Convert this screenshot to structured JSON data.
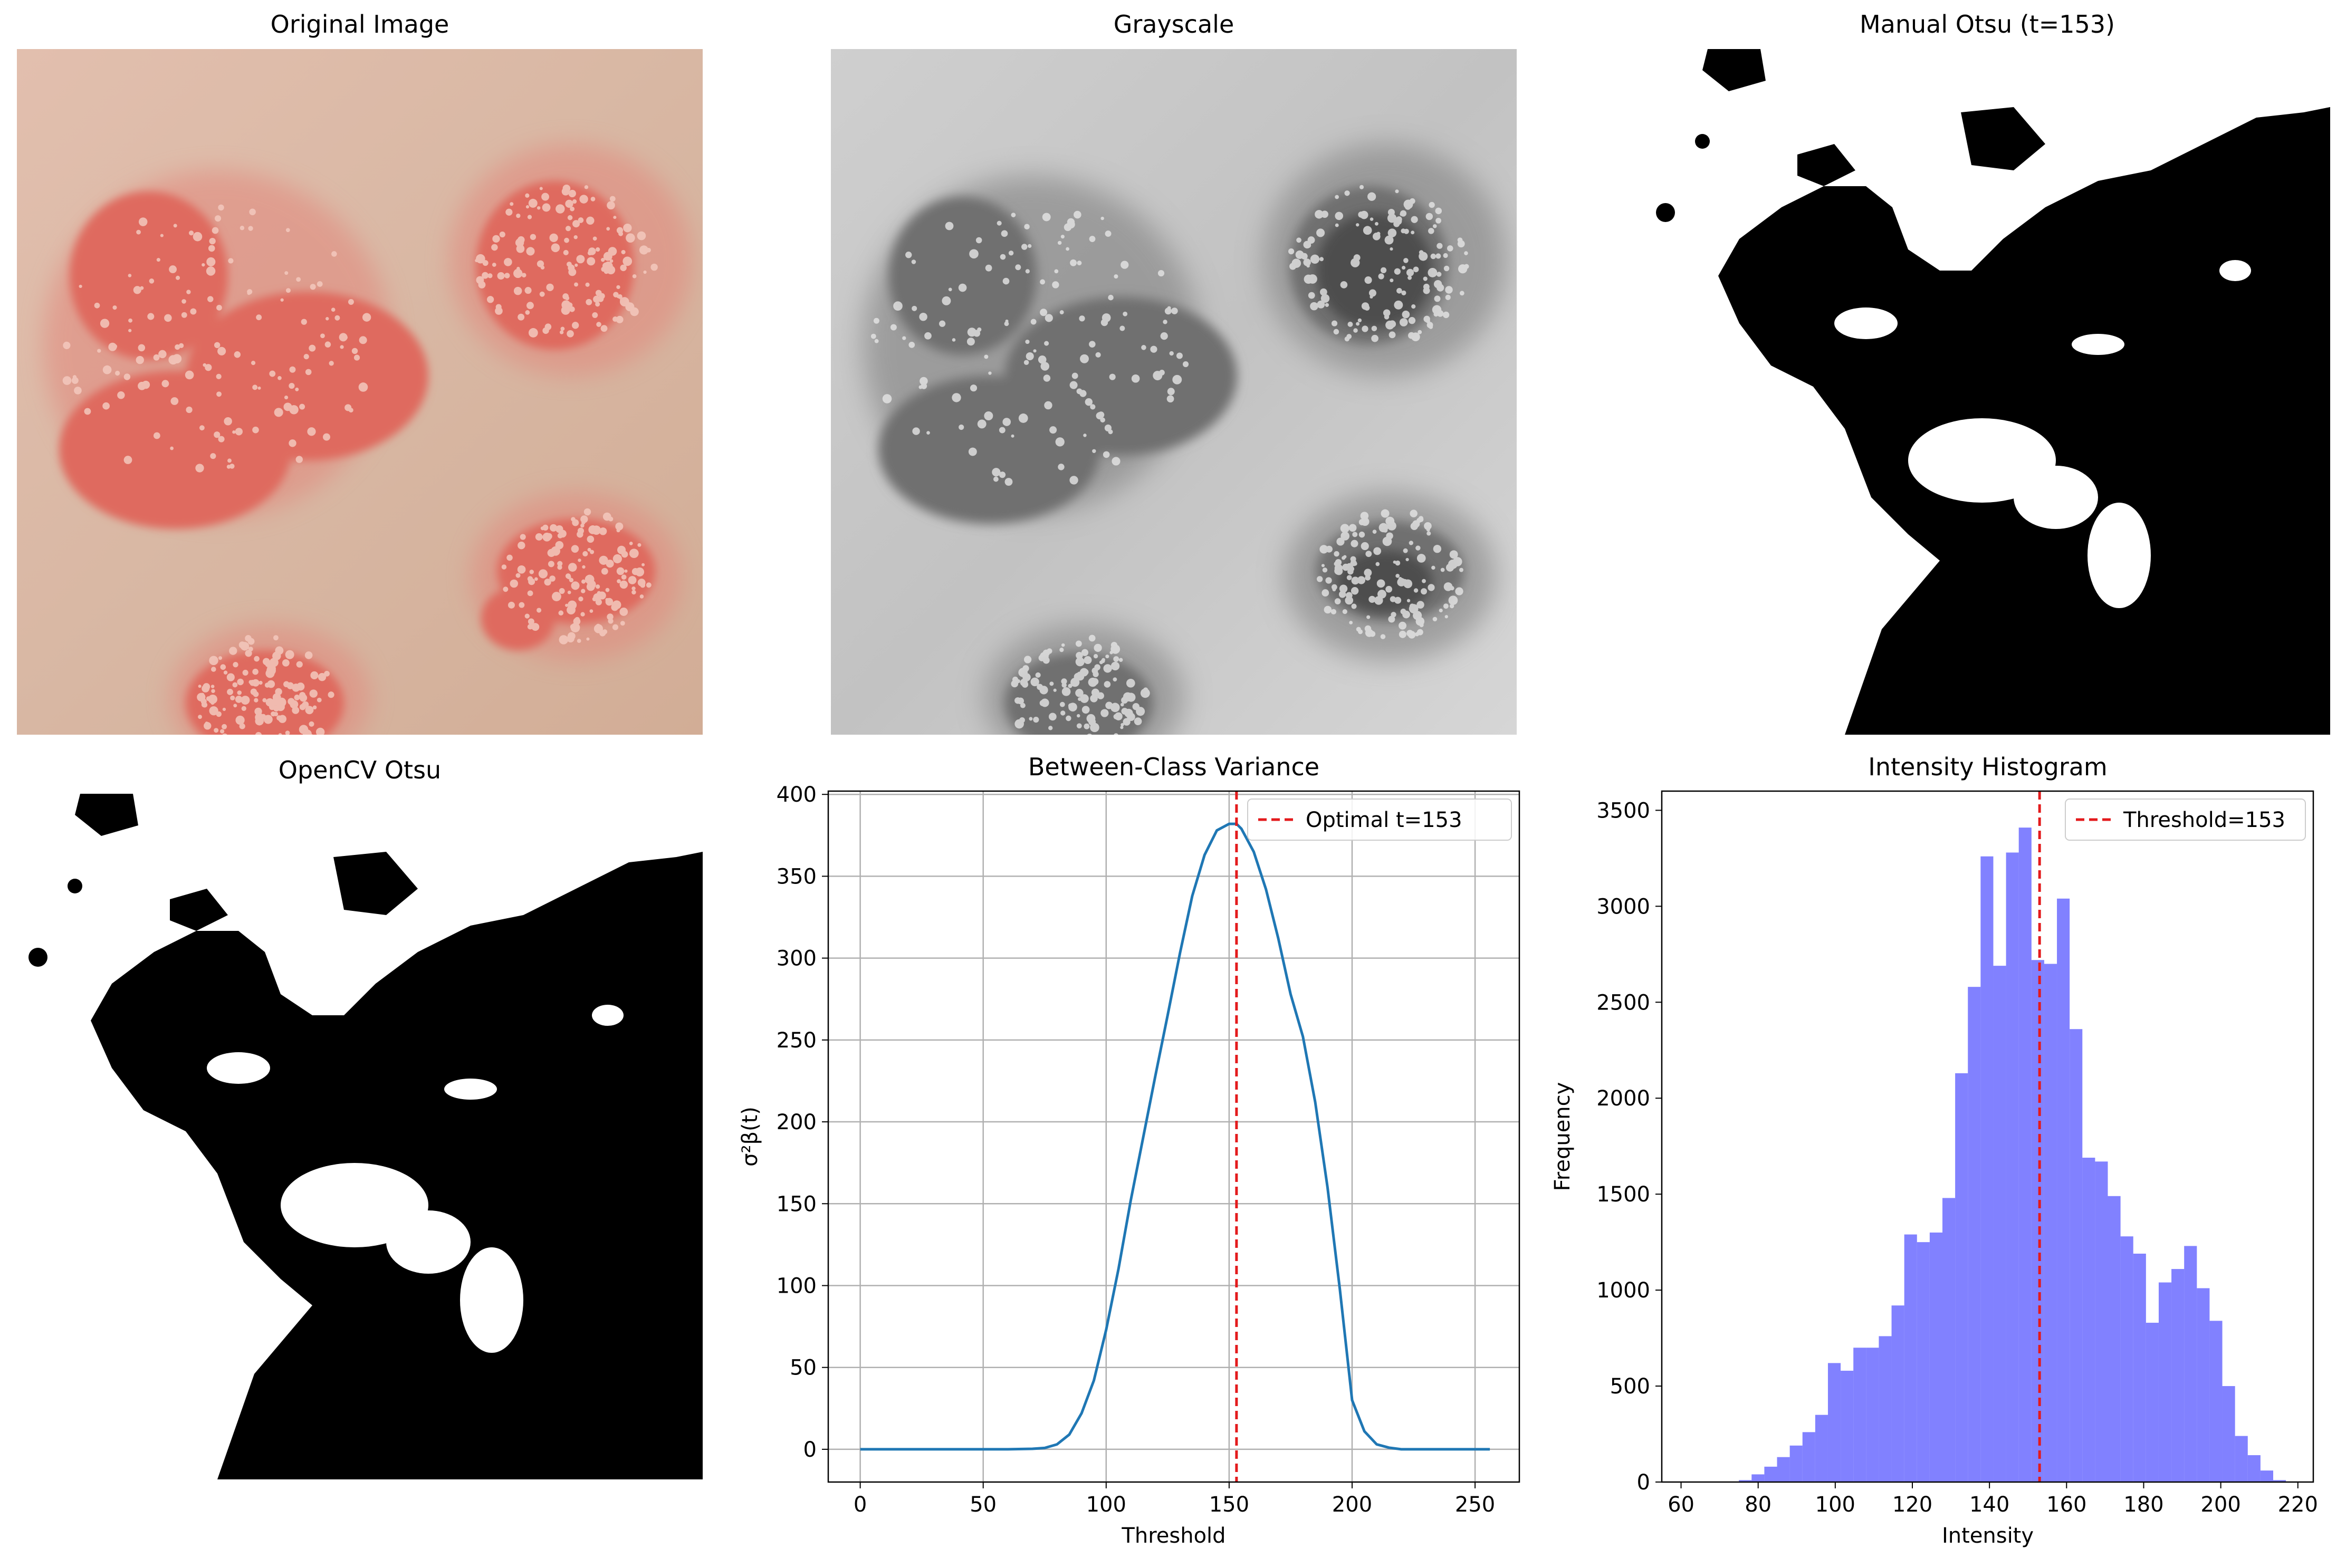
{
  "panels": {
    "original_title": "Original Image",
    "grayscale_title": "Grayscale",
    "manual_title": "Manual Otsu (t=153)",
    "opencv_title": "OpenCV Otsu"
  },
  "colors": {
    "skin": "#d9b7a2",
    "lesion": "#e0675c",
    "variance_line": "#1f77b4",
    "threshold_line": "#e31a1c",
    "hist_bars": "#4b4bff"
  },
  "chart_data": [
    {
      "type": "line",
      "title": "Between-Class Variance",
      "xlabel": "Threshold",
      "ylabel": "σ²β(t)",
      "xlim": [
        -13,
        268
      ],
      "ylim": [
        -20,
        402
      ],
      "xticks": [
        0,
        50,
        100,
        150,
        200,
        250
      ],
      "yticks": [
        0,
        50,
        100,
        150,
        200,
        250,
        300,
        350,
        400
      ],
      "grid": true,
      "legend_position": "top-right",
      "x": [
        0,
        60,
        70,
        75,
        80,
        85,
        90,
        95,
        100,
        105,
        110,
        115,
        120,
        125,
        130,
        135,
        140,
        145,
        150,
        153,
        155,
        160,
        165,
        170,
        175,
        180,
        185,
        190,
        195,
        200,
        205,
        210,
        215,
        220,
        230,
        256
      ],
      "series": [
        {
          "name": "",
          "values": [
            0,
            0,
            0.3,
            0.8,
            3,
            9,
            22,
            42,
            73,
            110,
            152,
            190,
            228,
            265,
            303,
            338,
            363,
            378,
            382,
            382,
            379,
            365,
            342,
            312,
            278,
            252,
            212,
            160,
            98,
            30,
            11,
            3,
            1,
            0,
            0,
            0
          ]
        }
      ],
      "vline": {
        "x": 153,
        "label": "Optimal t=153"
      }
    },
    {
      "type": "bar",
      "title": "Intensity Histogram",
      "xlabel": "Intensity",
      "ylabel": "Frequency",
      "xlim": [
        55,
        224
      ],
      "ylim": [
        0,
        3600
      ],
      "xticks": [
        60,
        80,
        100,
        120,
        140,
        160,
        180,
        200,
        220
      ],
      "yticks": [
        0,
        500,
        1000,
        1500,
        2000,
        2500,
        3000,
        3500
      ],
      "grid": false,
      "legend_position": "top-right",
      "bin_width": 3.3,
      "bin_starts": [
        75,
        78.3,
        81.6,
        84.9,
        88.2,
        91.5,
        94.8,
        98.1,
        101.4,
        104.7,
        108,
        111.3,
        114.6,
        117.9,
        121.2,
        124.5,
        127.8,
        131.1,
        134.4,
        137.7,
        141,
        144.3,
        147.6,
        150.9,
        154.2,
        157.5,
        160.8,
        164.1,
        167.4,
        170.7,
        174,
        177.3,
        180.6,
        183.9,
        187.2,
        190.5,
        193.8,
        197.1,
        200.4,
        203.7,
        207,
        210.3,
        213.6
      ],
      "values": [
        10,
        40,
        80,
        130,
        190,
        260,
        350,
        620,
        580,
        700,
        700,
        760,
        920,
        1290,
        1250,
        1300,
        1480,
        2130,
        2580,
        3260,
        2690,
        3280,
        3410,
        2720,
        2700,
        3040,
        2360,
        1690,
        1670,
        1490,
        1280,
        1190,
        830,
        1040,
        1110,
        1230,
        1010,
        840,
        500,
        240,
        140,
        60,
        10
      ],
      "vline": {
        "x": 153,
        "label": "Threshold=153"
      }
    }
  ]
}
